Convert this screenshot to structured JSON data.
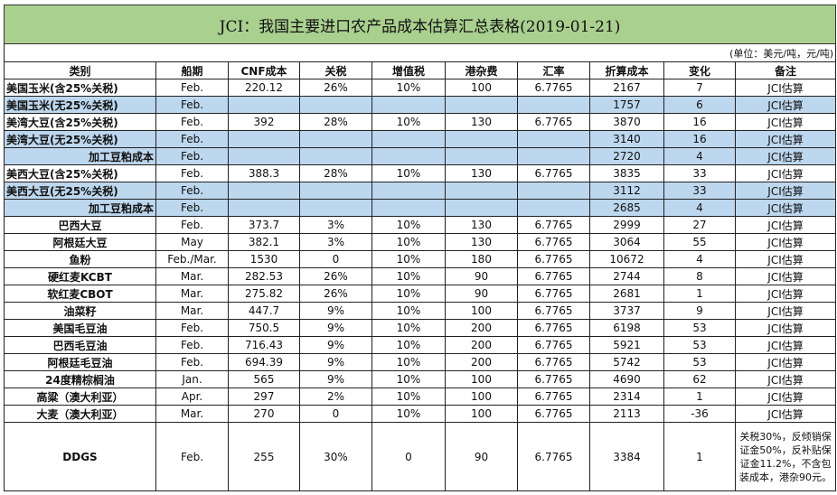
{
  "title": "JCI：我国主要进口农产品成本估算汇总表格(2019-01-21)",
  "unit": "(单位：美元/吨，元/吨)",
  "headers": [
    "类别",
    "船期",
    "CNF成本",
    "关税",
    "增值税",
    "港杂费",
    "汇率",
    "折算成本",
    "变化",
    "备注"
  ],
  "highlight_color": "#bdd7ee",
  "title_color": "#a9d08e",
  "rows": [
    {
      "cells": [
        "美国玉米(含25%关税)",
        "Feb.",
        "220.12",
        "26%",
        "10%",
        "100",
        "6.7765",
        "2167",
        "7",
        "JCI估算"
      ],
      "align": "left",
      "blue": false
    },
    {
      "cells": [
        "美国玉米(无25%关税)",
        "Feb.",
        "",
        "",
        "",
        "",
        "",
        "1757",
        "6",
        "JCI估算"
      ],
      "align": "left",
      "blue": true
    },
    {
      "cells": [
        "美湾大豆(含25%关税)",
        "Feb.",
        "392",
        "28%",
        "10%",
        "130",
        "6.7765",
        "3870",
        "16",
        "JCI估算"
      ],
      "align": "left",
      "blue": false
    },
    {
      "cells": [
        "美湾大豆(无25%关税)",
        "Feb.",
        "",
        "",
        "",
        "",
        "",
        "3140",
        "16",
        "JCI估算"
      ],
      "align": "left",
      "blue": true
    },
    {
      "cells": [
        "加工豆粕成本",
        "Feb.",
        "",
        "",
        "",
        "",
        "",
        "2720",
        "4",
        "JCI估算"
      ],
      "align": "right",
      "blue": true
    },
    {
      "cells": [
        "美西大豆(含25%关税)",
        "Feb.",
        "388.3",
        "28%",
        "10%",
        "130",
        "6.7765",
        "3835",
        "33",
        "JCI估算"
      ],
      "align": "left",
      "blue": false
    },
    {
      "cells": [
        "美西大豆(无25%关税)",
        "Feb.",
        "",
        "",
        "",
        "",
        "",
        "3112",
        "33",
        "JCI估算"
      ],
      "align": "left",
      "blue": true
    },
    {
      "cells": [
        "加工豆粕成本",
        "Feb.",
        "",
        "",
        "",
        "",
        "",
        "2685",
        "4",
        "JCI估算"
      ],
      "align": "right",
      "blue": true
    },
    {
      "cells": [
        "巴西大豆",
        "Feb.",
        "373.7",
        "3%",
        "10%",
        "130",
        "6.7765",
        "2999",
        "27",
        "JCI估算"
      ],
      "align": "center",
      "blue": false
    },
    {
      "cells": [
        "阿根廷大豆",
        "May",
        "382.1",
        "3%",
        "10%",
        "130",
        "6.7765",
        "3064",
        "55",
        "JCI估算"
      ],
      "align": "center",
      "blue": false
    },
    {
      "cells": [
        "鱼粉",
        "Feb./Mar.",
        "1530",
        "0",
        "10%",
        "180",
        "6.7765",
        "10672",
        "4",
        "JCI估算"
      ],
      "align": "center",
      "blue": false
    },
    {
      "cells": [
        "硬红麦KCBT",
        "Mar.",
        "282.53",
        "26%",
        "10%",
        "90",
        "6.7765",
        "2744",
        "8",
        "JCI估算"
      ],
      "align": "center",
      "blue": false
    },
    {
      "cells": [
        "软红麦CBOT",
        "Mar.",
        "275.82",
        "26%",
        "10%",
        "90",
        "6.7765",
        "2681",
        "1",
        "JCI估算"
      ],
      "align": "center",
      "blue": false
    },
    {
      "cells": [
        "油菜籽",
        "Mar.",
        "447.7",
        "9%",
        "10%",
        "100",
        "6.7765",
        "3737",
        "9",
        "JCI估算"
      ],
      "align": "center",
      "blue": false
    },
    {
      "cells": [
        "美国毛豆油",
        "Feb.",
        "750.5",
        "9%",
        "10%",
        "200",
        "6.7765",
        "6198",
        "53",
        "JCI估算"
      ],
      "align": "center",
      "blue": false
    },
    {
      "cells": [
        "巴西毛豆油",
        "Feb.",
        "716.43",
        "9%",
        "10%",
        "200",
        "6.7765",
        "5921",
        "53",
        "JCI估算"
      ],
      "align": "center",
      "blue": false
    },
    {
      "cells": [
        "阿根廷毛豆油",
        "Feb.",
        "694.39",
        "9%",
        "10%",
        "200",
        "6.7765",
        "5742",
        "53",
        "JCI估算"
      ],
      "align": "center",
      "blue": false
    },
    {
      "cells": [
        "24度精棕榈油",
        "Jan.",
        "565",
        "9%",
        "10%",
        "100",
        "6.7765",
        "4690",
        "62",
        "JCI估算"
      ],
      "align": "center",
      "blue": false
    },
    {
      "cells": [
        "高粱（澳大利亚）",
        "Apr.",
        "297",
        "2%",
        "10%",
        "100",
        "6.7765",
        "2314",
        "1",
        "JCI估算"
      ],
      "align": "center",
      "blue": false
    },
    {
      "cells": [
        "大麦（澳大利亚）",
        "Mar.",
        "270",
        "0",
        "10%",
        "100",
        "6.7765",
        "2113",
        "-36",
        "JCI估算"
      ],
      "align": "center",
      "blue": false
    },
    {
      "cells": [
        "DDGS",
        "Feb.",
        "255",
        "30%",
        "0",
        "90",
        "6.7765",
        "3384",
        "1",
        "关税30%，反倾销保证金50%，反补贴保证金11.2%，不含包装成本，港杂90元。"
      ],
      "align": "center",
      "blue": false,
      "tall": true
    }
  ]
}
